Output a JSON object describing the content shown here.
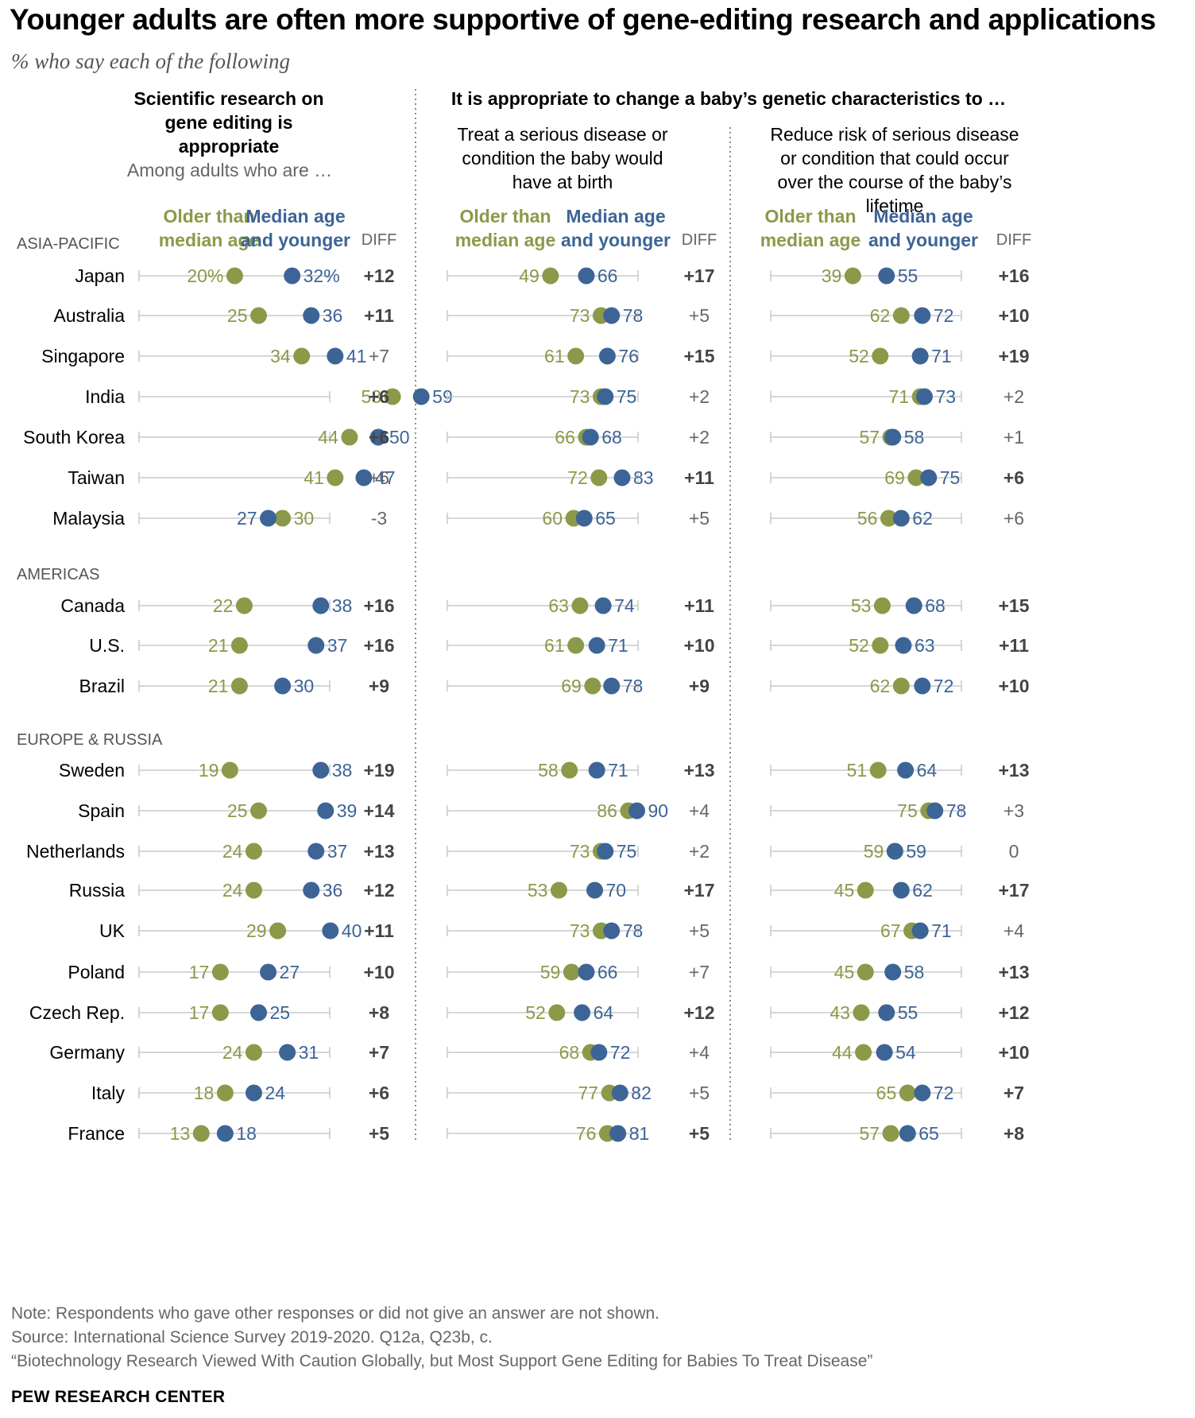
{
  "title": "Younger adults are often more supportive of gene-editing research and applications",
  "subtitle": "% who say each of the following",
  "headers": {
    "research": "Scientific research on gene editing is appropriate",
    "baby": "It is appropriate to change a baby’s genetic characteristics to …",
    "among": "Among adults who are …",
    "treat": "Treat a serious disease or condition the baby would have at birth",
    "reduce": "Reduce risk of serious disease or condition that could occur over the course of the baby’s lifetime",
    "older_label": "Older than median age",
    "younger_label": "Median age and younger",
    "diff_label": "DIFF"
  },
  "colors": {
    "older": "#8a9a48",
    "younger": "#3d6496",
    "line": "#c8c8c8",
    "divider": "#8c8c8c"
  },
  "chart_data": {
    "type": "dot-plot",
    "unit": "%",
    "panels": [
      "Scientific research on gene editing is appropriate",
      "Treat a serious disease or condition the baby would have at birth",
      "Reduce risk of serious disease or condition that could occur over the course of the baby’s lifetime"
    ],
    "series": [
      "Older than median age",
      "Median age and younger"
    ],
    "groups": [
      {
        "region": "ASIA-PACIFIC",
        "rows": [
          {
            "country": "Japan",
            "values": [
              [
                20,
                32,
                "+12",
                true
              ],
              [
                49,
                66,
                "+17",
                true
              ],
              [
                39,
                55,
                "+16",
                true
              ]
            ]
          },
          {
            "country": "Australia",
            "values": [
              [
                25,
                36,
                "+11",
                true
              ],
              [
                73,
                78,
                "+5",
                false
              ],
              [
                62,
                72,
                "+10",
                true
              ]
            ]
          },
          {
            "country": "Singapore",
            "values": [
              [
                34,
                41,
                "+7",
                false
              ],
              [
                61,
                76,
                "+15",
                true
              ],
              [
                52,
                71,
                "+19",
                true
              ]
            ]
          },
          {
            "country": "India",
            "values": [
              [
                53,
                59,
                "+6",
                true
              ],
              [
                73,
                75,
                "+2",
                false
              ],
              [
                71,
                73,
                "+2",
                false
              ]
            ]
          },
          {
            "country": "South Korea",
            "values": [
              [
                44,
                50,
                "+6",
                true
              ],
              [
                66,
                68,
                "+2",
                false
              ],
              [
                57,
                58,
                "+1",
                false
              ]
            ]
          },
          {
            "country": "Taiwan",
            "values": [
              [
                41,
                47,
                "+6",
                false
              ],
              [
                72,
                83,
                "+11",
                true
              ],
              [
                69,
                75,
                "+6",
                true
              ]
            ]
          },
          {
            "country": "Malaysia",
            "values": [
              [
                30,
                27,
                "-3",
                false
              ],
              [
                60,
                65,
                "+5",
                false
              ],
              [
                56,
                62,
                "+6",
                false
              ]
            ]
          }
        ]
      },
      {
        "region": "AMERICAS",
        "rows": [
          {
            "country": "Canada",
            "values": [
              [
                22,
                38,
                "+16",
                true
              ],
              [
                63,
                74,
                "+11",
                true
              ],
              [
                53,
                68,
                "+15",
                true
              ]
            ]
          },
          {
            "country": "U.S.",
            "values": [
              [
                21,
                37,
                "+16",
                true
              ],
              [
                61,
                71,
                "+10",
                true
              ],
              [
                52,
                63,
                "+11",
                true
              ]
            ]
          },
          {
            "country": "Brazil",
            "values": [
              [
                21,
                30,
                "+9",
                true
              ],
              [
                69,
                78,
                "+9",
                true
              ],
              [
                62,
                72,
                "+10",
                true
              ]
            ]
          }
        ]
      },
      {
        "region": "EUROPE & RUSSIA",
        "rows": [
          {
            "country": "Sweden",
            "values": [
              [
                19,
                38,
                "+19",
                true
              ],
              [
                58,
                71,
                "+13",
                true
              ],
              [
                51,
                64,
                "+13",
                true
              ]
            ]
          },
          {
            "country": "Spain",
            "values": [
              [
                25,
                39,
                "+14",
                true
              ],
              [
                86,
                90,
                "+4",
                false
              ],
              [
                75,
                78,
                "+3",
                false
              ]
            ]
          },
          {
            "country": "Netherlands",
            "values": [
              [
                24,
                37,
                "+13",
                true
              ],
              [
                73,
                75,
                "+2",
                false
              ],
              [
                59,
                59,
                "0",
                false
              ]
            ]
          },
          {
            "country": "Russia",
            "values": [
              [
                24,
                36,
                "+12",
                true
              ],
              [
                53,
                70,
                "+17",
                true
              ],
              [
                45,
                62,
                "+17",
                true
              ]
            ]
          },
          {
            "country": "UK",
            "values": [
              [
                29,
                40,
                "+11",
                true
              ],
              [
                73,
                78,
                "+5",
                false
              ],
              [
                67,
                71,
                "+4",
                false
              ]
            ]
          },
          {
            "country": "Poland",
            "values": [
              [
                17,
                27,
                "+10",
                true
              ],
              [
                59,
                66,
                "+7",
                false
              ],
              [
                45,
                58,
                "+13",
                true
              ]
            ]
          },
          {
            "country": "Czech Rep.",
            "values": [
              [
                17,
                25,
                "+8",
                true
              ],
              [
                52,
                64,
                "+12",
                true
              ],
              [
                43,
                55,
                "+12",
                true
              ]
            ]
          },
          {
            "country": "Germany",
            "values": [
              [
                24,
                31,
                "+7",
                true
              ],
              [
                68,
                72,
                "+4",
                false
              ],
              [
                44,
                54,
                "+10",
                true
              ]
            ]
          },
          {
            "country": "Italy",
            "values": [
              [
                18,
                24,
                "+6",
                true
              ],
              [
                77,
                82,
                "+5",
                false
              ],
              [
                65,
                72,
                "+7",
                true
              ]
            ]
          },
          {
            "country": "France",
            "values": [
              [
                13,
                18,
                "+5",
                true
              ],
              [
                76,
                81,
                "+5",
                true
              ],
              [
                57,
                65,
                "+8",
                true
              ]
            ]
          }
        ]
      }
    ]
  },
  "footer": {
    "note": "Note: Respondents who gave other responses or did not give an answer are not shown.",
    "source": "Source: International Science Survey 2019-2020. Q12a, Q23b, c.",
    "report": "“Biotechnology Research Viewed With Caution Globally, but Most Support Gene Editing for Babies To Treat Disease”",
    "brand": "PEW RESEARCH CENTER"
  }
}
